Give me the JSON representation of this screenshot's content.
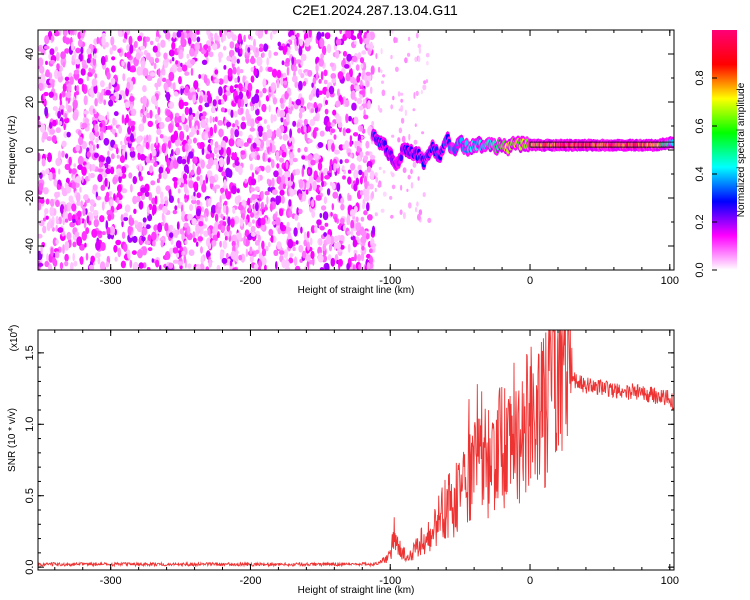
{
  "title": "C2E1.2024.287.13.04.G11",
  "chart_data": [
    {
      "type": "heatmap",
      "xlabel": "Height of straight line (km)",
      "ylabel": "Frequency (Hz)",
      "xlim": [
        -352,
        103
      ],
      "ylim": [
        -50,
        50
      ],
      "x_ticks": [
        -300,
        -200,
        -100,
        0,
        100
      ],
      "x_tick_labels": [
        "-300",
        "-200",
        "-100",
        "0",
        "100"
      ],
      "y_ticks": [
        -40,
        -20,
        0,
        20,
        40
      ],
      "y_tick_labels": [
        "-40",
        "-20",
        "0",
        "20",
        "40"
      ],
      "colorbar": {
        "label": "Normalized spectral amplitude",
        "range": [
          0,
          1
        ],
        "ticks": [
          0.0,
          0.2,
          0.4,
          0.6,
          0.8
        ],
        "tick_labels": [
          "0.0",
          "0.2",
          "0.4",
          "0.6",
          "0.8"
        ],
        "colors": [
          "#ffffff",
          "#ff00ff",
          "#0000ff",
          "#00ffff",
          "#00ff00",
          "#ffff00",
          "#ff0000",
          "#ff0077"
        ]
      },
      "noise_region_x": [
        -352,
        -112
      ],
      "signal_track": {
        "x": [
          -112,
          -105,
          -100,
          -95,
          -90,
          -85,
          -80,
          -75,
          -70,
          -65,
          -60,
          -55,
          -50,
          -45,
          -40,
          -35,
          -30,
          -25,
          -20,
          -15,
          -10,
          -5,
          0,
          10,
          20,
          30,
          40,
          50,
          60,
          70,
          80,
          90,
          100,
          103
        ],
        "freq": [
          5,
          3,
          -2,
          -6,
          1,
          -1,
          -2,
          -5,
          1,
          -3,
          5,
          0,
          3,
          1,
          2,
          2,
          3,
          1,
          2,
          1,
          3,
          2,
          2,
          2,
          2,
          2,
          2,
          2,
          2,
          2,
          2,
          2,
          3,
          3
        ],
        "amplitude": [
          0.35,
          0.3,
          0.25,
          0.2,
          0.3,
          0.28,
          0.3,
          0.3,
          0.32,
          0.35,
          0.35,
          0.38,
          0.4,
          0.42,
          0.45,
          0.48,
          0.5,
          0.55,
          0.7,
          0.75,
          0.7,
          0.75,
          0.8,
          0.85,
          0.9,
          0.92,
          0.92,
          0.9,
          0.9,
          0.9,
          0.88,
          0.8,
          0.5,
          0.5
        ]
      }
    },
    {
      "type": "line",
      "xlabel": "Height of straight line (km)",
      "ylabel": "SNR (10 * v/v)",
      "y_scale_label": "(x10",
      "y_scale_exponent": "4",
      "y_scale_close": ")",
      "xlim": [
        -352,
        103
      ],
      "ylim": [
        -0.02,
        1.66
      ],
      "x_ticks": [
        -300,
        -200,
        -100,
        0,
        100
      ],
      "x_tick_labels": [
        "-300",
        "-200",
        "-100",
        "0",
        "100"
      ],
      "y_ticks": [
        0.0,
        0.5,
        1.0,
        1.5
      ],
      "y_tick_labels": [
        "0.0",
        "0.5",
        "1.0",
        "1.5"
      ],
      "color": "#ee3333",
      "series": [
        {
          "x": [
            -352,
            -200,
            -110,
            -100,
            -97,
            -93,
            -88,
            -85,
            -80,
            -75,
            -70,
            -65,
            -60,
            -55,
            -50,
            -45,
            -40,
            -35,
            -30,
            -25,
            -20,
            -15,
            -10,
            -5,
            0,
            5,
            10,
            15,
            20,
            25,
            30,
            40,
            50,
            60,
            70,
            80,
            90,
            100,
            103
          ],
          "y": [
            0.02,
            0.02,
            0.02,
            0.08,
            0.28,
            0.12,
            0.07,
            0.09,
            0.16,
            0.2,
            0.25,
            0.33,
            0.42,
            0.45,
            0.5,
            0.6,
            0.68,
            0.72,
            0.75,
            0.8,
            0.85,
            0.9,
            0.95,
            0.98,
            1.0,
            1.1,
            1.22,
            1.3,
            1.35,
            1.38,
            1.32,
            1.27,
            1.25,
            1.24,
            1.23,
            1.22,
            1.2,
            1.18,
            1.15
          ]
        }
      ]
    }
  ]
}
